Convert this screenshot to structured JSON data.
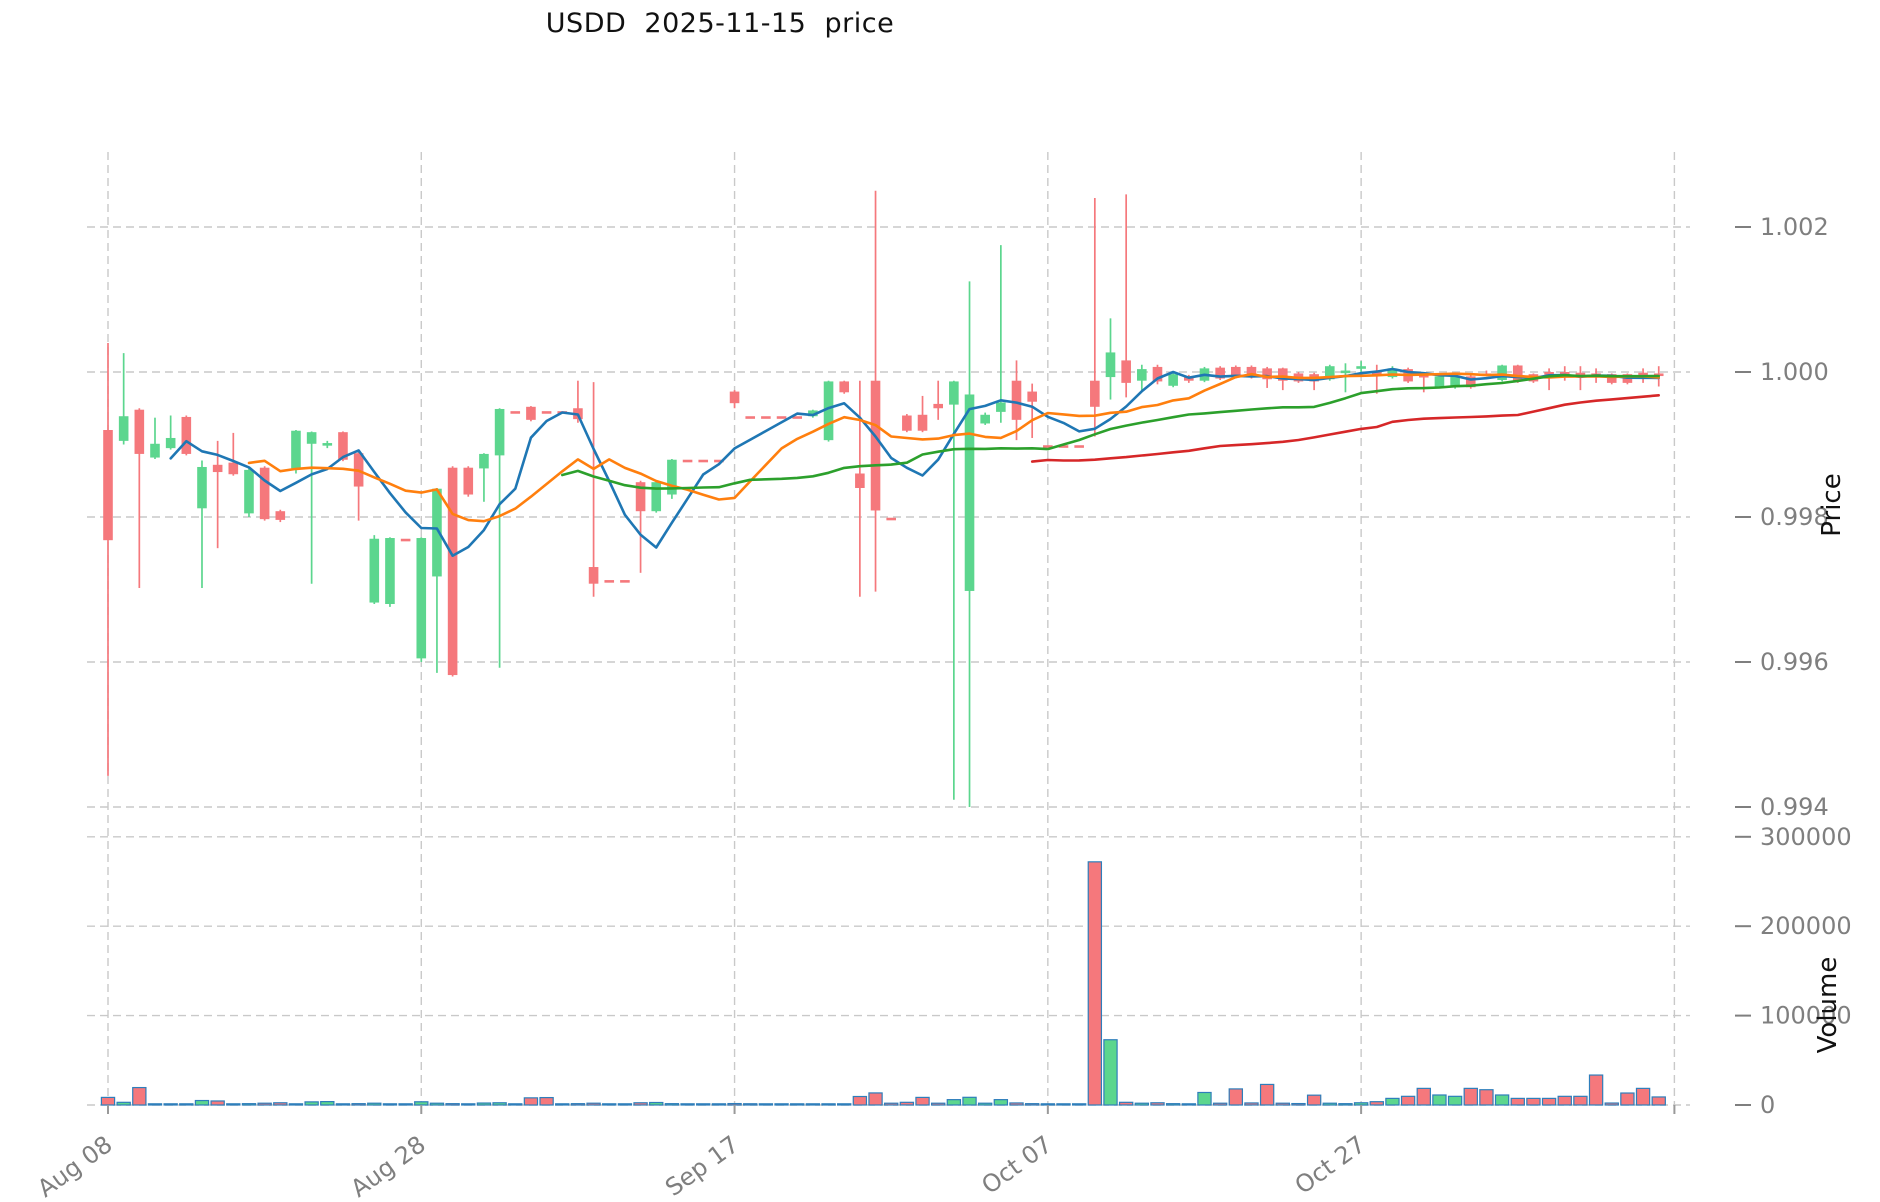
{
  "title": "USDD  2025-11-15  price",
  "axes": {
    "price_label": "Price",
    "volume_label": "Volume",
    "price_ticks": [
      {
        "label": "1.002",
        "value": 1.002
      },
      {
        "label": "1.000",
        "value": 1.0
      },
      {
        "label": "0.998",
        "value": 0.998
      },
      {
        "label": "0.996",
        "value": 0.996
      },
      {
        "label": "0.994",
        "value": 0.994
      }
    ],
    "volume_ticks": [
      {
        "label": "300000",
        "value": 300000
      },
      {
        "label": "200000",
        "value": 200000
      },
      {
        "label": "100000",
        "value": 100000
      },
      {
        "label": "0",
        "value": 0
      }
    ],
    "x_ticks": [
      {
        "label": "Aug 08",
        "index": 0
      },
      {
        "label": "Aug 28",
        "index": 20
      },
      {
        "label": "Sep 17",
        "index": 40
      },
      {
        "label": "Oct 07",
        "index": 60
      },
      {
        "label": "Oct 27",
        "index": 80
      }
    ],
    "unlabeled_gridline_index": 100
  },
  "colors": {
    "up": "#5CD68E",
    "down": "#F5787C",
    "ma5": "#1F77B4",
    "ma10": "#FF7F0E",
    "ma30": "#2CA02C",
    "ma60": "#D62728",
    "grid": "#C9C9C9",
    "tick_text": "#7F7F7F",
    "axis_label_text": "#111111",
    "volume_bar_edge": "#2E7EBB"
  },
  "chart_data": {
    "type": "candlestick",
    "title": "USDD  2025-11-15  price",
    "ylabel": "Price",
    "ylabel_lower": "Volume",
    "price_ylim": [
      0.9935,
      1.0029
    ],
    "volume_ylim": [
      0,
      330000
    ],
    "grid": "dashed",
    "ma_periods": [
      5,
      10,
      30,
      60
    ],
    "ohlcv_format": [
      "open",
      "high",
      "low",
      "close",
      "volume"
    ],
    "candles": [
      [
        0.9992,
        1.0004,
        0.99443,
        0.99768,
        8500
      ],
      [
        0.99905,
        1.00026,
        0.999,
        0.99939,
        3000
      ],
      [
        0.99948,
        0.9995,
        0.99702,
        0.99887,
        19500
      ],
      [
        0.99882,
        0.99937,
        0.9988,
        0.99901,
        1000
      ],
      [
        0.99895,
        0.9994,
        0.99893,
        0.99909,
        800
      ],
      [
        0.99938,
        0.9994,
        0.99885,
        0.99887,
        1200
      ],
      [
        0.99812,
        0.99878,
        0.99702,
        0.99869,
        5000
      ],
      [
        0.99872,
        0.99905,
        0.99757,
        0.99862,
        4500
      ],
      [
        0.99875,
        0.99916,
        0.99857,
        0.99859,
        1000
      ],
      [
        0.99805,
        0.99867,
        0.998,
        0.99865,
        1500
      ],
      [
        0.99868,
        0.9987,
        0.99795,
        0.99797,
        2000
      ],
      [
        0.99808,
        0.9981,
        0.99793,
        0.99796,
        2500
      ],
      [
        0.99867,
        0.9992,
        0.9986,
        0.99919,
        1200
      ],
      [
        0.99901,
        0.99918,
        0.99708,
        0.99917,
        3500
      ],
      [
        0.999,
        0.99905,
        0.99895,
        0.99902,
        3800
      ],
      [
        0.99917,
        0.99918,
        0.99877,
        0.99879,
        800
      ],
      [
        0.99888,
        0.9989,
        0.99795,
        0.99842,
        1500
      ],
      [
        0.99682,
        0.99775,
        0.9968,
        0.9977,
        2000
      ],
      [
        0.9968,
        0.99772,
        0.99676,
        0.99771,
        1000
      ],
      [
        0.9977,
        0.99772,
        0.99768,
        0.9977,
        1200
      ],
      [
        0.99605,
        0.99772,
        0.996,
        0.99771,
        3600
      ],
      [
        0.99718,
        0.9984,
        0.99585,
        0.99839,
        2000
      ],
      [
        0.99868,
        0.9987,
        0.9958,
        0.99582,
        1500
      ],
      [
        0.99868,
        0.9987,
        0.99828,
        0.99831,
        1000
      ],
      [
        0.99867,
        0.99888,
        0.99821,
        0.99887,
        2200
      ],
      [
        0.99885,
        0.9995,
        0.99592,
        0.99949,
        2500
      ],
      [
        0.99946,
        0.99946,
        0.99946,
        0.99946,
        800
      ],
      [
        0.99952,
        0.99953,
        0.99932,
        0.99934,
        8000
      ],
      [
        0.99946,
        0.99946,
        0.99946,
        0.99946,
        8300
      ],
      [
        0.99946,
        0.99946,
        0.99946,
        0.99946,
        1000
      ],
      [
        0.9995,
        0.99988,
        0.9993,
        0.99935,
        1500
      ],
      [
        0.99731,
        0.99986,
        0.9969,
        0.99708,
        2000
      ],
      [
        0.99713,
        0.99713,
        0.99713,
        0.99713,
        600
      ],
      [
        0.99713,
        0.99713,
        0.99713,
        0.99713,
        500
      ],
      [
        0.99848,
        0.9985,
        0.99723,
        0.99808,
        2500
      ],
      [
        0.99808,
        0.9985,
        0.99806,
        0.99848,
        2800
      ],
      [
        0.99831,
        0.9988,
        0.99825,
        0.99879,
        1500
      ],
      [
        0.99879,
        0.99879,
        0.99879,
        0.99879,
        600
      ],
      [
        0.99879,
        0.99879,
        0.99879,
        0.99879,
        500
      ],
      [
        0.99879,
        0.99879,
        0.99879,
        0.99879,
        700
      ],
      [
        0.99973,
        0.99975,
        0.9995,
        0.99957,
        1600
      ],
      [
        0.99939,
        0.99939,
        0.99939,
        0.99939,
        1400
      ],
      [
        0.99939,
        0.99939,
        0.99939,
        0.99939,
        600
      ],
      [
        0.99939,
        0.99939,
        0.99939,
        0.99939,
        500
      ],
      [
        0.99939,
        0.99939,
        0.99939,
        0.99939,
        800
      ],
      [
        0.99939,
        0.99948,
        0.99937,
        0.99947,
        1000
      ],
      [
        0.99906,
        0.99988,
        0.99904,
        0.99987,
        1300
      ],
      [
        0.99987,
        0.99988,
        0.9997,
        0.99972,
        900
      ],
      [
        0.9986,
        0.99988,
        0.9969,
        0.9984,
        9500
      ],
      [
        0.99988,
        1.0025,
        0.99697,
        0.99809,
        13500
      ],
      [
        0.99799,
        0.998,
        0.99798,
        0.99799,
        2000
      ],
      [
        0.9994,
        0.99942,
        0.99917,
        0.99919,
        3000
      ],
      [
        0.99941,
        0.99967,
        0.99917,
        0.99919,
        8500
      ],
      [
        0.99956,
        0.99988,
        0.99934,
        0.9995,
        2000
      ],
      [
        0.99955,
        0.99988,
        0.9941,
        0.99987,
        6000
      ],
      [
        0.99698,
        1.00125,
        0.994,
        0.99969,
        8600
      ],
      [
        0.99929,
        0.99944,
        0.99927,
        0.99941,
        2000
      ],
      [
        0.99945,
        1.00175,
        0.9993,
        0.99958,
        6000
      ],
      [
        0.99988,
        1.00016,
        0.99906,
        0.99934,
        2300
      ],
      [
        0.99973,
        0.99984,
        0.99909,
        0.99959,
        1500
      ],
      [
        0.99899,
        0.99899,
        0.99899,
        0.99899,
        800
      ],
      [
        0.99899,
        0.99899,
        0.99899,
        0.99899,
        600
      ],
      [
        0.99899,
        0.99899,
        0.99899,
        0.99899,
        700
      ],
      [
        0.99988,
        1.0024,
        0.99911,
        0.99952,
        272000
      ],
      [
        0.99993,
        1.00074,
        0.99962,
        1.00027,
        73000
      ],
      [
        1.00016,
        1.00245,
        0.99965,
        0.99985,
        3000
      ],
      [
        0.99988,
        1.0001,
        0.99975,
        1.00004,
        2000
      ],
      [
        1.00007,
        1.0001,
        0.99983,
        0.99987,
        2500
      ],
      [
        0.99981,
        1.0,
        0.99979,
        0.99997,
        1500
      ],
      [
        0.99993,
        0.99996,
        0.99985,
        0.99988,
        800
      ],
      [
        0.99988,
        1.00007,
        0.99986,
        1.00005,
        14000
      ],
      [
        1.00006,
        1.00008,
        0.99989,
        0.99991,
        2000
      ],
      [
        1.00007,
        1.00009,
        0.99991,
        0.99993,
        18000
      ],
      [
        1.00007,
        1.00009,
        0.99991,
        0.99993,
        2300
      ],
      [
        1.00005,
        1.00007,
        0.99978,
        0.9999,
        23000
      ],
      [
        1.00005,
        1.00006,
        0.99975,
        0.99988,
        2000
      ],
      [
        0.99998,
        1.0,
        0.99985,
        0.99987,
        1600
      ],
      [
        0.99997,
        0.99999,
        0.99975,
        0.99987,
        11000
      ],
      [
        0.9999,
        1.0001,
        0.99988,
        1.00008,
        2000
      ],
      [
        1.0,
        1.00012,
        0.99972,
        1.00002,
        1500
      ],
      [
        1.00005,
        1.00015,
        0.99998,
        1.00008,
        2500
      ],
      [
        1.0,
        1.0001,
        0.9997,
        0.99998,
        3700
      ],
      [
        0.99993,
        1.00008,
        0.99991,
        1.00005,
        7400
      ],
      [
        1.00004,
        1.00006,
        0.99985,
        0.99987,
        9700
      ],
      [
        0.99996,
        1.0,
        0.99972,
        0.99994,
        18600
      ],
      [
        0.9998,
        0.99996,
        0.99978,
        0.99994,
        11200
      ],
      [
        0.99979,
        0.99996,
        0.99977,
        0.99994,
        9700
      ],
      [
        0.99994,
        0.99996,
        0.99977,
        0.99979,
        18600
      ],
      [
        0.99998,
        1.00002,
        0.99994,
        0.99996,
        17100
      ],
      [
        0.99989,
        1.0001,
        0.99987,
        1.00009,
        11200
      ],
      [
        1.00009,
        1.0001,
        0.99985,
        0.99987,
        7400
      ],
      [
        0.99997,
        0.99998,
        0.99985,
        0.99987,
        7400
      ],
      [
        1.0,
        1.00005,
        0.99975,
        0.99998,
        7400
      ],
      [
        1.0,
        1.00008,
        0.99988,
        0.99998,
        9700
      ],
      [
        0.99999,
        1.00008,
        0.99975,
        0.99997,
        9700
      ],
      [
        0.99998,
        1.00005,
        0.99985,
        0.99996,
        33500
      ],
      [
        0.99997,
        0.99998,
        0.99983,
        0.99985,
        2200
      ],
      [
        0.99997,
        0.99998,
        0.99983,
        0.99985,
        13400
      ],
      [
        0.99999,
        1.00005,
        0.99985,
        0.99997,
        18600
      ],
      [
        0.99998,
        1.00008,
        0.9998,
        0.99996,
        9000
      ]
    ]
  }
}
